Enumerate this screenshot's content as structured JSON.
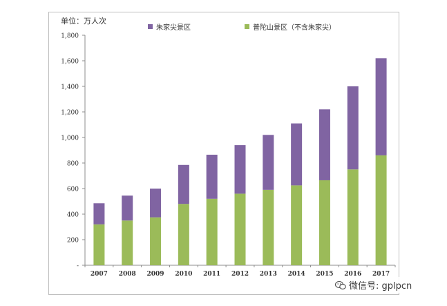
{
  "chart_data": {
    "type": "bar",
    "stacked": true,
    "unit_label": "单位：万人次",
    "categories": [
      "2007",
      "2008",
      "2009",
      "2010",
      "2011",
      "2012",
      "2013",
      "2014",
      "2015",
      "2016",
      "2017"
    ],
    "series": [
      {
        "name": "普陀山景区（不含朱家尖）",
        "color": "#9bbb59",
        "values": [
          320,
          350,
          375,
          480,
          520,
          560,
          590,
          625,
          665,
          750,
          860
        ]
      },
      {
        "name": "朱家尖景区",
        "color": "#8064a2",
        "values": [
          165,
          195,
          225,
          305,
          345,
          380,
          430,
          485,
          555,
          650,
          760
        ]
      }
    ],
    "legend_order": [
      1,
      0
    ],
    "ylim": [
      0,
      1800
    ],
    "yticks": [
      0,
      200,
      400,
      600,
      800,
      1000,
      1200,
      1400,
      1600,
      1800
    ],
    "ytick_labels": [
      "-",
      "200",
      "400",
      "600",
      "800",
      "1,000",
      "1,200",
      "1,400",
      "1,600",
      "1,800"
    ],
    "legend_position": "top"
  },
  "watermark": {
    "text": "微信号: gplpcn",
    "icon": "wechat-icon"
  }
}
